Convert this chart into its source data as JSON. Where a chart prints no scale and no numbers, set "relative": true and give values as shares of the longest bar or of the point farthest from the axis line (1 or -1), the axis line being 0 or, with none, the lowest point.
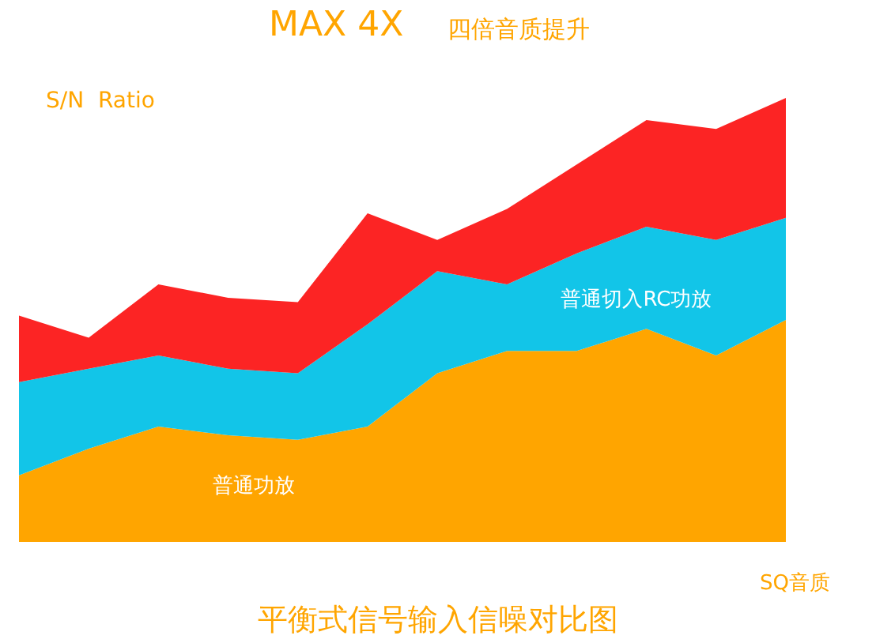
{
  "chart_data": {
    "type": "area",
    "title": "MAX 4X",
    "subtitle": "四倍音质提升",
    "ylabel": "S/N  Ratio",
    "xlabel": "SQ音质",
    "annotations": [
      "平衡式信号输入信噪对比图"
    ],
    "relative": true,
    "stacked": true,
    "legend": false,
    "grid": false,
    "categories": [
      null,
      null,
      null,
      null,
      null,
      null,
      null,
      null,
      null,
      null,
      null,
      null
    ],
    "series": [
      {
        "name": "普通功放",
        "color": "#ffa500",
        "values": [
          0.15,
          0.21,
          0.26,
          0.24,
          0.23,
          0.26,
          0.38,
          0.43,
          0.43,
          0.48,
          0.42,
          0.5
        ]
      },
      {
        "name": "普通切入RC功放",
        "color": "#12c5e8",
        "values": [
          0.21,
          0.18,
          0.16,
          0.15,
          0.15,
          0.23,
          0.23,
          0.15,
          0.22,
          0.23,
          0.26,
          0.23
        ]
      },
      {
        "color": "#fc2424",
        "values": [
          0.15,
          0.07,
          0.16,
          0.16,
          0.16,
          0.25,
          0.07,
          0.17,
          0.2,
          0.24,
          0.25,
          0.27
        ]
      }
    ]
  }
}
